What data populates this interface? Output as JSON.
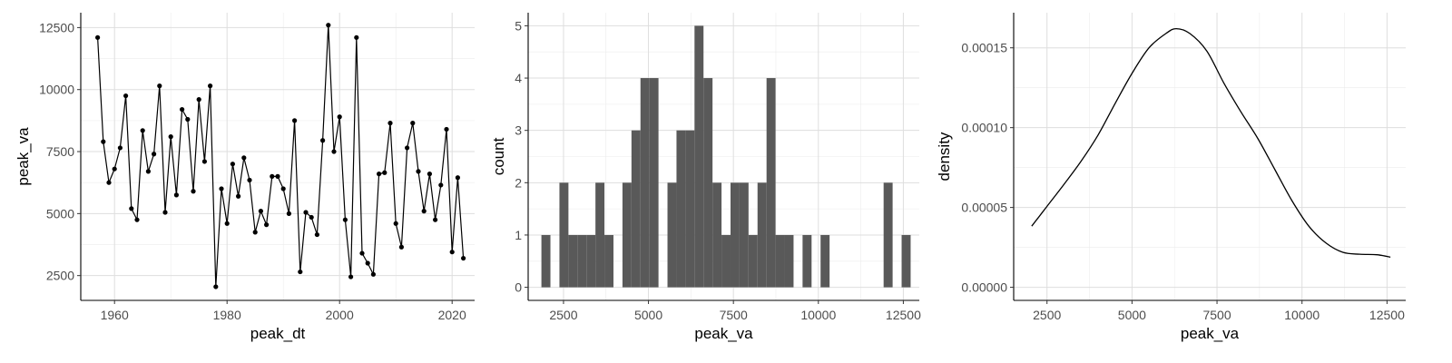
{
  "chart_data": [
    {
      "type": "line",
      "xlabel": "peak_dt",
      "ylabel": "peak_va",
      "xlim": [
        1954,
        2024
      ],
      "ylim": [
        1500,
        13100
      ],
      "x_ticks": [
        1960,
        1980,
        2000,
        2020
      ],
      "y_ticks": [
        2500,
        5000,
        7500,
        10000,
        12500
      ],
      "grid": true,
      "points": [
        [
          1957,
          12100
        ],
        [
          1958,
          7900
        ],
        [
          1959,
          6250
        ],
        [
          1960,
          6800
        ],
        [
          1961,
          7650
        ],
        [
          1962,
          9750
        ],
        [
          1963,
          5200
        ],
        [
          1964,
          4750
        ],
        [
          1965,
          8350
        ],
        [
          1966,
          6700
        ],
        [
          1967,
          7400
        ],
        [
          1968,
          10150
        ],
        [
          1969,
          5050
        ],
        [
          1970,
          8100
        ],
        [
          1971,
          5750
        ],
        [
          1972,
          9200
        ],
        [
          1973,
          8800
        ],
        [
          1974,
          5900
        ],
        [
          1975,
          9600
        ],
        [
          1976,
          7100
        ],
        [
          1977,
          10150
        ],
        [
          1978,
          2050
        ],
        [
          1979,
          6000
        ],
        [
          1980,
          4600
        ],
        [
          1981,
          7000
        ],
        [
          1982,
          5700
        ],
        [
          1983,
          7250
        ],
        [
          1984,
          6350
        ],
        [
          1985,
          4250
        ],
        [
          1986,
          5100
        ],
        [
          1987,
          4550
        ],
        [
          1988,
          6500
        ],
        [
          1989,
          6500
        ],
        [
          1990,
          6000
        ],
        [
          1991,
          5000
        ],
        [
          1992,
          8750
        ],
        [
          1993,
          2650
        ],
        [
          1994,
          5050
        ],
        [
          1995,
          4850
        ],
        [
          1996,
          4150
        ],
        [
          1997,
          7950
        ],
        [
          1998,
          12600
        ],
        [
          1999,
          7500
        ],
        [
          2000,
          8900
        ],
        [
          2001,
          4750
        ],
        [
          2002,
          2450
        ],
        [
          2003,
          12100
        ],
        [
          2004,
          3400
        ],
        [
          2005,
          3000
        ],
        [
          2006,
          2550
        ],
        [
          2007,
          6600
        ],
        [
          2008,
          6650
        ],
        [
          2009,
          8650
        ],
        [
          2010,
          4600
        ],
        [
          2011,
          3650
        ],
        [
          2012,
          7650
        ],
        [
          2013,
          8650
        ],
        [
          2014,
          6700
        ],
        [
          2015,
          5100
        ],
        [
          2016,
          6600
        ],
        [
          2017,
          4750
        ],
        [
          2018,
          6150
        ],
        [
          2019,
          8400
        ],
        [
          2020,
          3450
        ],
        [
          2021,
          6450
        ],
        [
          2022,
          3200
        ]
      ]
    },
    {
      "type": "bar",
      "subtype": "histogram",
      "xlabel": "peak_va",
      "ylabel": "count",
      "xlim": [
        1460,
        12970
      ],
      "ylim": [
        -0.25,
        5.25
      ],
      "x_ticks": [
        2500,
        5000,
        7500,
        10000,
        12500
      ],
      "y_ticks": [
        0,
        1,
        2,
        3,
        4,
        5
      ],
      "grid": true,
      "fill": "#595959",
      "bin_start": 1850,
      "bin_width": 265,
      "counts": [
        1,
        0,
        2,
        1,
        1,
        1,
        2,
        1,
        0,
        2,
        3,
        4,
        4,
        0,
        2,
        3,
        3,
        5,
        4,
        2,
        1,
        2,
        2,
        1,
        2,
        4,
        1,
        1,
        0,
        1,
        0,
        1,
        0,
        0,
        0,
        0,
        0,
        0,
        2,
        0,
        1
      ]
    },
    {
      "type": "area",
      "subtype": "density",
      "xlabel": "peak_va",
      "ylabel": "density",
      "xlim": [
        1520,
        13050
      ],
      "ylim": [
        -8.2e-06,
        0.000172
      ],
      "x_ticks": [
        2500,
        5000,
        7500,
        10000,
        12500
      ],
      "y_ticks": [
        0,
        5e-05,
        0.0001,
        0.00015
      ],
      "y_tick_labels": [
        "0.00000",
        "0.00005",
        "0.00010",
        "0.00015"
      ],
      "grid": true,
      "curve": [
        [
          2050,
          3.83e-05
        ],
        [
          2500,
          5.07e-05
        ],
        [
          3000,
          6.45e-05
        ],
        [
          3500,
          7.89e-05
        ],
        [
          4000,
          9.53e-05
        ],
        [
          4500,
          0.000115
        ],
        [
          5000,
          0.000134
        ],
        [
          5500,
          0.00015
        ],
        [
          6000,
          0.000159
        ],
        [
          6300,
          0.000162
        ],
        [
          6700,
          0.000159
        ],
        [
          7200,
          0.000148
        ],
        [
          7700,
          0.000128
        ],
        [
          8200,
          0.00011
        ],
        [
          8700,
          9.32e-05
        ],
        [
          9200,
          7.38e-05
        ],
        [
          9700,
          5.44e-05
        ],
        [
          10200,
          3.83e-05
        ],
        [
          10700,
          2.78e-05
        ],
        [
          11200,
          2.19e-05
        ],
        [
          11700,
          2.07e-05
        ],
        [
          12200,
          2.04e-05
        ],
        [
          12600,
          1.89e-05
        ]
      ]
    }
  ]
}
